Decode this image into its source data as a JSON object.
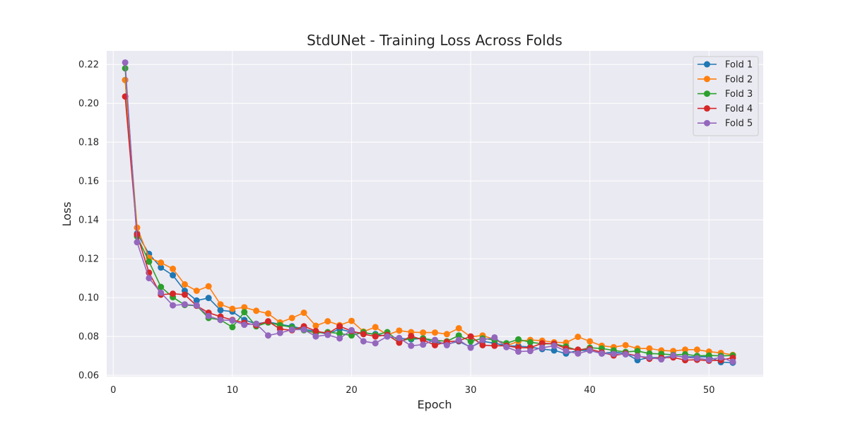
{
  "chart_data": {
    "type": "line",
    "title": "StdUNet - Training Loss Across Folds",
    "xlabel": "Epoch",
    "ylabel": "Loss",
    "xlim": [
      -0.55,
      54.55
    ],
    "ylim": [
      0.0593,
      0.227
    ],
    "xticks": [
      0,
      10,
      20,
      30,
      40,
      50
    ],
    "xtick_labels": [
      "0",
      "10",
      "20",
      "30",
      "40",
      "50"
    ],
    "yticks": [
      0.06,
      0.08,
      0.1,
      0.12,
      0.14,
      0.16,
      0.18,
      0.2,
      0.22
    ],
    "ytick_labels": [
      "0.06",
      "0.08",
      "0.10",
      "0.12",
      "0.14",
      "0.16",
      "0.18",
      "0.20",
      "0.22"
    ],
    "grid": true,
    "legend_position": "top-right",
    "x": [
      1,
      2,
      3,
      4,
      5,
      6,
      7,
      8,
      9,
      10,
      11,
      12,
      13,
      14,
      15,
      16,
      17,
      18,
      19,
      20,
      21,
      22,
      23,
      24,
      25,
      26,
      27,
      28,
      29,
      30,
      31,
      32,
      33,
      34,
      35,
      36,
      37,
      38,
      39,
      40,
      41,
      42,
      43,
      44,
      45,
      46,
      47,
      48,
      49,
      50,
      51,
      52
    ],
    "series": [
      {
        "name": "Fold 1",
        "color": "#1f77b4",
        "values": [
          0.212,
          0.133,
          0.1225,
          0.1155,
          0.1115,
          0.1035,
          0.0985,
          0.0998,
          0.0935,
          0.0928,
          0.0885,
          0.0865,
          0.0875,
          0.0862,
          0.0852,
          0.0838,
          0.0825,
          0.0812,
          0.0838,
          0.0822,
          0.0818,
          0.0812,
          0.08,
          0.079,
          0.0785,
          0.079,
          0.077,
          0.076,
          0.0775,
          0.0745,
          0.0775,
          0.0765,
          0.0752,
          0.075,
          0.0745,
          0.0735,
          0.0728,
          0.0712,
          0.0728,
          0.0728,
          0.0712,
          0.072,
          0.0712,
          0.0678,
          0.0692,
          0.069,
          0.07,
          0.0695,
          0.0695,
          0.0695,
          0.0668,
          0.0665
        ]
      },
      {
        "name": "Fold 2",
        "color": "#ff7f0e",
        "values": [
          0.212,
          0.136,
          0.1205,
          0.118,
          0.1148,
          0.1068,
          0.1035,
          0.1058,
          0.0965,
          0.0942,
          0.095,
          0.0932,
          0.0918,
          0.0872,
          0.0895,
          0.0922,
          0.0855,
          0.0878,
          0.0858,
          0.088,
          0.0825,
          0.0848,
          0.0808,
          0.083,
          0.0822,
          0.082,
          0.082,
          0.0812,
          0.0842,
          0.0798,
          0.0805,
          0.0785,
          0.0752,
          0.0775,
          0.0782,
          0.0778,
          0.077,
          0.0768,
          0.0798,
          0.0775,
          0.0752,
          0.0745,
          0.0755,
          0.0738,
          0.0738,
          0.0728,
          0.0725,
          0.0732,
          0.0732,
          0.0722,
          0.0715,
          0.0705
        ]
      },
      {
        "name": "Fold 3",
        "color": "#2ca02c",
        "values": [
          0.218,
          0.1315,
          0.1185,
          0.1055,
          0.1002,
          0.0962,
          0.0958,
          0.0895,
          0.0885,
          0.0848,
          0.0925,
          0.0852,
          0.0872,
          0.0858,
          0.0848,
          0.0832,
          0.0818,
          0.0822,
          0.0815,
          0.0805,
          0.0822,
          0.0808,
          0.0822,
          0.0775,
          0.079,
          0.079,
          0.078,
          0.0775,
          0.0805,
          0.0775,
          0.079,
          0.0782,
          0.0765,
          0.0785,
          0.077,
          0.0762,
          0.0762,
          0.0748,
          0.0728,
          0.0742,
          0.0738,
          0.0728,
          0.072,
          0.0725,
          0.0712,
          0.071,
          0.0705,
          0.0708,
          0.07,
          0.0702,
          0.07,
          0.0702
        ]
      },
      {
        "name": "Fold 4",
        "color": "#d62728",
        "values": [
          0.2035,
          0.1325,
          0.1128,
          0.1015,
          0.102,
          0.1015,
          0.0958,
          0.0922,
          0.0902,
          0.0885,
          0.087,
          0.0858,
          0.0878,
          0.0838,
          0.0832,
          0.0852,
          0.0828,
          0.0815,
          0.0852,
          0.0828,
          0.0812,
          0.08,
          0.0808,
          0.0768,
          0.0802,
          0.0782,
          0.0755,
          0.0772,
          0.0778,
          0.08,
          0.0755,
          0.0752,
          0.0752,
          0.0742,
          0.0742,
          0.0765,
          0.0762,
          0.0738,
          0.0732,
          0.0735,
          0.0718,
          0.0702,
          0.0712,
          0.07,
          0.0685,
          0.069,
          0.0692,
          0.0678,
          0.068,
          0.0675,
          0.0678,
          0.069
        ]
      },
      {
        "name": "Fold 5",
        "color": "#9467bd",
        "values": [
          0.221,
          0.1285,
          0.11,
          0.1025,
          0.096,
          0.0965,
          0.096,
          0.0905,
          0.0885,
          0.0882,
          0.086,
          0.0865,
          0.0805,
          0.0818,
          0.0835,
          0.0835,
          0.08,
          0.0808,
          0.079,
          0.0832,
          0.0775,
          0.0765,
          0.08,
          0.0792,
          0.0752,
          0.0758,
          0.0782,
          0.0755,
          0.0782,
          0.0742,
          0.0782,
          0.0795,
          0.0745,
          0.0722,
          0.0725,
          0.0742,
          0.0752,
          0.0725,
          0.0712,
          0.0728,
          0.0712,
          0.071,
          0.0708,
          0.0698,
          0.0692,
          0.0682,
          0.0702,
          0.0692,
          0.0688,
          0.068,
          0.0692,
          0.067
        ]
      }
    ]
  }
}
